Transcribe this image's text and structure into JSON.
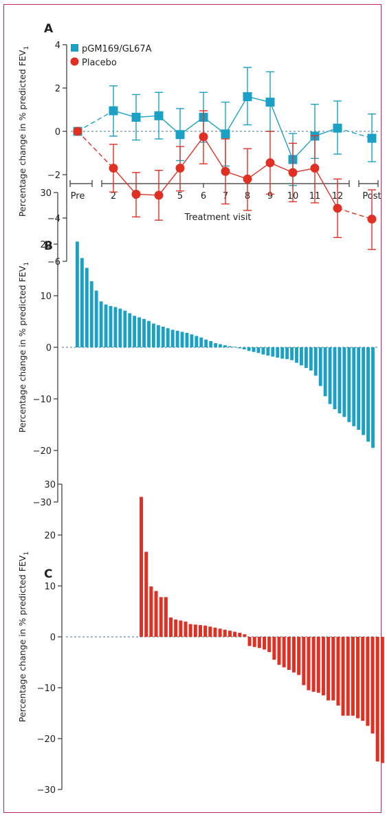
{
  "colors": {
    "teal": "#1aa1c5",
    "red": "#e03023",
    "axis": "#333333",
    "frame": "#c3265f"
  },
  "chart_data": [
    {
      "panel": "A",
      "type": "line",
      "xlabel": "Treatment visit",
      "ylabel": "Percentage change in % predicted FEV",
      "ylabel_sub": "1",
      "x_ticks": [
        "Pre",
        "2",
        "3",
        "4",
        "5",
        "6",
        "7",
        "8",
        "9",
        "10",
        "11",
        "12",
        "Post"
      ],
      "ylim": [
        -6,
        4
      ],
      "y_ticks": [
        4,
        2,
        0,
        -2,
        -4,
        -6
      ],
      "y_tick_labels": [
        "4",
        "2",
        "0",
        "−2",
        "−4",
        "−6"
      ],
      "legend": "top-left",
      "series": [
        {
          "name": "pGM169/GL67A",
          "marker": "square",
          "values": [
            0,
            0.95,
            0.65,
            0.72,
            -0.15,
            0.65,
            -0.12,
            1.6,
            1.35,
            -1.3,
            -0.22,
            0.15,
            -0.32
          ],
          "err_low": [
            0,
            -0.22,
            -0.4,
            -0.35,
            -1.35,
            -0.5,
            -1.6,
            0.3,
            0,
            -2.5,
            -1.25,
            -1.05,
            -1.4
          ],
          "err_high": [
            0,
            2.1,
            1.7,
            1.8,
            1.05,
            1.8,
            1.35,
            2.95,
            2.75,
            -0.1,
            1.25,
            1.4,
            0.8
          ]
        },
        {
          "name": "Placebo",
          "marker": "circle",
          "values": [
            0,
            -1.7,
            -2.9,
            -2.95,
            -1.7,
            -0.25,
            -1.85,
            -2.2,
            -1.45,
            -1.9,
            -1.7,
            -3.55,
            -4.05
          ],
          "err_low": [
            0,
            -2.8,
            -3.95,
            -4.1,
            -2.75,
            -1.5,
            -3.35,
            -3.65,
            -2.9,
            -3.25,
            -3.3,
            -4.9,
            -5.45
          ],
          "err_high": [
            0,
            -0.6,
            -1.9,
            -1.8,
            -0.7,
            0.95,
            -0.35,
            -0.8,
            0,
            -0.55,
            -0.2,
            -2.2,
            -2.7
          ]
        }
      ]
    },
    {
      "panel": "B",
      "type": "bar",
      "ylabel": "Percentage change in % predicted FEV",
      "ylabel_sub": "1",
      "ylim": [
        -30,
        30
      ],
      "y_ticks": [
        30,
        20,
        10,
        0,
        -10,
        -20,
        -30
      ],
      "y_tick_labels": [
        "30",
        "20",
        "10",
        "0",
        "−10",
        "−20",
        "−30"
      ],
      "values": [
        20.5,
        17.3,
        15.4,
        12.8,
        11,
        8.9,
        8.3,
        8,
        7.8,
        7.5,
        7.1,
        6.6,
        6.1,
        5.8,
        5.5,
        5.1,
        4.6,
        4.3,
        4,
        3.7,
        3.4,
        3.2,
        3,
        2.8,
        2.5,
        2.2,
        1.9,
        1.5,
        1.2,
        0.8,
        0.6,
        0.4,
        0.2,
        0.1,
        -0.2,
        -0.4,
        -0.7,
        -0.9,
        -1.1,
        -1.4,
        -1.6,
        -1.8,
        -2,
        -2.2,
        -2.3,
        -2.5,
        -3,
        -3.5,
        -4,
        -4.5,
        -5.5,
        -7.5,
        -9.5,
        -11,
        -12,
        -12.8,
        -13.5,
        -14.5,
        -15.3,
        -16,
        -17,
        -18.3,
        -19.5
      ]
    },
    {
      "panel": "C",
      "type": "bar",
      "ylabel": "Percentage change in % predicted FEV",
      "ylabel_sub": "1",
      "ylim": [
        -30,
        30
      ],
      "y_ticks": [
        30,
        20,
        10,
        0,
        -10,
        -20,
        -30
      ],
      "y_tick_labels": [
        "30",
        "20",
        "10",
        "0",
        "−10",
        "−20",
        "−30"
      ],
      "leading_empty": 13,
      "values": [
        27.5,
        16.7,
        9.9,
        9,
        7.8,
        7.8,
        3.8,
        3.4,
        3.2,
        3,
        2.5,
        2.4,
        2.3,
        2.2,
        2,
        1.8,
        1.6,
        1.4,
        1.2,
        1,
        0.8,
        0.5,
        -1.8,
        -2,
        -2.2,
        -2.5,
        -3,
        -4.5,
        -5.5,
        -6,
        -6.5,
        -7,
        -7.5,
        -9.5,
        -10.5,
        -10.8,
        -11,
        -11.5,
        -12.5,
        -12.5,
        -13.5,
        -15.5,
        -15.5,
        -15.5,
        -16,
        -16.5,
        -17.5,
        -19,
        -24.5,
        -24.8
      ]
    }
  ]
}
